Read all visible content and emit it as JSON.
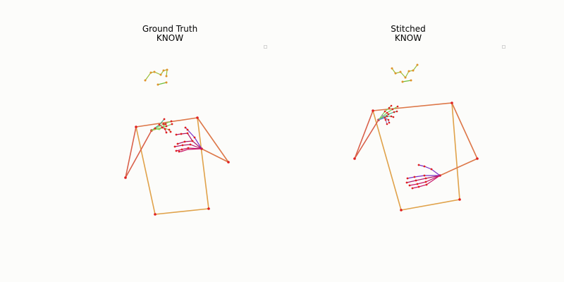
{
  "panels": [
    {
      "title_line1": "Ground Truth",
      "title_line2": "KNOW"
    },
    {
      "title_line1": "Stitched",
      "title_line2": "KNOW"
    }
  ],
  "colors": {
    "background": "#fcfcfa",
    "torso": "#e0a24a",
    "arm": "#d9604a",
    "joint": "#e02020",
    "face": "#6fbf3a",
    "face_alt": "#e0932a",
    "left_hand": "#7fd05a",
    "right_hand": "#b0186a",
    "right_hand_alt": "#7a2fc8"
  }
}
